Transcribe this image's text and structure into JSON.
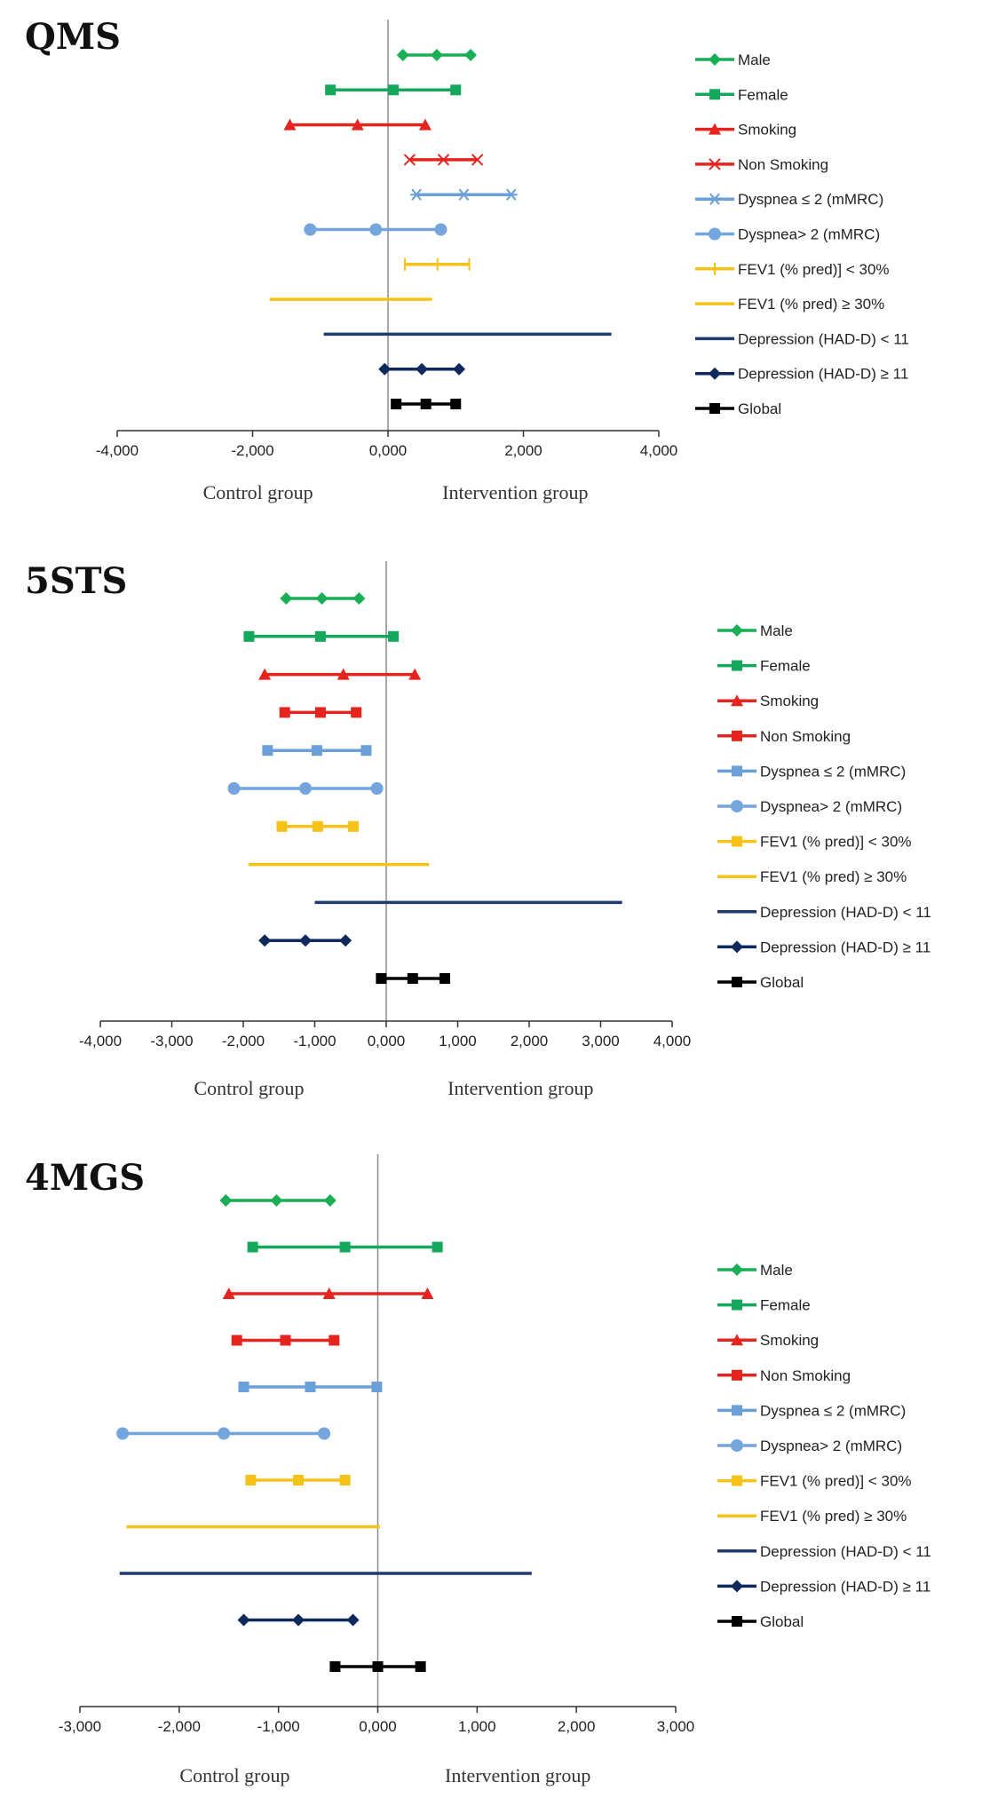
{
  "colors": {
    "Male": "#1aae55",
    "Female": "#14a85c",
    "Smoking": "#e52420",
    "Non Smoking": "#e52420",
    "Dyspnea ≤ 2 (mMRC)": "#6a9fd8",
    "Dyspnea> 2 (mMRC)": "#74a5dc",
    "FEV1 (% pred)] < 30%": "#f5c218",
    "FEV1 (% pred) ≥ 30%": "#f5c218",
    "Depression (HAD-D) < 11": "#1f3a6e",
    "Depression (HAD-D) ≥ 11": "#0e2a5c",
    "Global": "#000000"
  },
  "chart_data": [
    {
      "type": "forest",
      "title": "QMS",
      "xlim": [
        -4,
        4
      ],
      "ticks": [
        -4,
        -2,
        0,
        2,
        4
      ],
      "tick_labels": [
        "-4,000",
        "-2,000",
        "0,000",
        "2,000",
        "4,000"
      ],
      "left_group": "Control group",
      "right_group": "Intervention group",
      "series": [
        {
          "name": "Male",
          "marker": "diamond",
          "low": 0.22,
          "mid": 0.72,
          "high": 1.22
        },
        {
          "name": "Female",
          "marker": "square",
          "low": -0.85,
          "mid": 0.08,
          "high": 1.0
        },
        {
          "name": "Smoking",
          "marker": "triangle",
          "low": -1.45,
          "mid": -0.45,
          "high": 0.55
        },
        {
          "name": "Non Smoking",
          "marker": "x",
          "low": 0.32,
          "mid": 0.82,
          "high": 1.32
        },
        {
          "name": "Dyspnea ≤ 2 (mMRC)",
          "marker": "star",
          "low": 0.42,
          "mid": 1.12,
          "high": 1.82
        },
        {
          "name": "Dyspnea> 2 (mMRC)",
          "marker": "circle",
          "low": -1.15,
          "mid": -0.18,
          "high": 0.78
        },
        {
          "name": "FEV1 (% pred)] < 30%",
          "marker": "plus",
          "low": 0.25,
          "mid": 0.73,
          "high": 1.2
        },
        {
          "name": "FEV1 (% pred) ≥ 30%",
          "marker": "none",
          "low": -1.75,
          "high": 0.65
        },
        {
          "name": "Depression (HAD-D) < 11",
          "marker": "none",
          "low": -0.95,
          "high": 3.3
        },
        {
          "name": "Depression (HAD-D) ≥ 11",
          "marker": "diamond",
          "low": -0.05,
          "mid": 0.5,
          "high": 1.05
        },
        {
          "name": "Global",
          "marker": "square",
          "low": 0.12,
          "mid": 0.56,
          "high": 1.0
        }
      ]
    },
    {
      "type": "forest",
      "title": "5STS",
      "xlim": [
        -4,
        4
      ],
      "ticks": [
        -4,
        -3,
        -2,
        -1,
        0,
        1,
        2,
        3,
        4
      ],
      "tick_labels": [
        "-4,000",
        "-3,000",
        "-2,000",
        "-1,000",
        "0,000",
        "1,000",
        "2,000",
        "3,000",
        "4,000"
      ],
      "left_group": "Control group",
      "right_group": "Intervention group",
      "series": [
        {
          "name": "Male",
          "marker": "diamond",
          "low": -1.4,
          "mid": -0.9,
          "high": -0.38
        },
        {
          "name": "Female",
          "marker": "square",
          "low": -1.92,
          "mid": -0.92,
          "high": 0.1
        },
        {
          "name": "Smoking",
          "marker": "triangle",
          "low": -1.7,
          "mid": -0.6,
          "high": 0.4
        },
        {
          "name": "Non Smoking",
          "marker": "square",
          "low": -1.42,
          "mid": -0.92,
          "high": -0.42
        },
        {
          "name": "Dyspnea ≤ 2 (mMRC)",
          "marker": "square",
          "low": -1.66,
          "mid": -0.97,
          "high": -0.28
        },
        {
          "name": "Dyspnea> 2 (mMRC)",
          "marker": "circle",
          "low": -2.13,
          "mid": -1.13,
          "high": -0.13
        },
        {
          "name": "FEV1 (% pred)] < 30%",
          "marker": "square",
          "low": -1.46,
          "mid": -0.96,
          "high": -0.46
        },
        {
          "name": "FEV1 (% pred) ≥ 30%",
          "marker": "none",
          "low": -1.93,
          "high": 0.6
        },
        {
          "name": "Depression (HAD-D) < 11",
          "marker": "none",
          "low": -1.0,
          "high": 3.3
        },
        {
          "name": "Depression (HAD-D) ≥ 11",
          "marker": "diamond",
          "low": -1.7,
          "mid": -1.13,
          "high": -0.57
        },
        {
          "name": "Global",
          "marker": "square",
          "low": -0.07,
          "mid": 0.37,
          "high": 0.82
        }
      ]
    },
    {
      "type": "forest",
      "title": "4MGS",
      "xlim": [
        -3,
        3
      ],
      "ticks": [
        -3,
        -2,
        -1,
        0,
        1,
        2,
        3
      ],
      "tick_labels": [
        "-3,000",
        "-2,000",
        "-1,000",
        "0,000",
        "1,000",
        "2,000",
        "3,000"
      ],
      "left_group": "Control group",
      "right_group": "Intervention group",
      "series": [
        {
          "name": "Male",
          "marker": "diamond",
          "low": -1.53,
          "mid": -1.02,
          "high": -0.48
        },
        {
          "name": "Female",
          "marker": "square",
          "low": -1.26,
          "mid": -0.33,
          "high": 0.6
        },
        {
          "name": "Smoking",
          "marker": "triangle",
          "low": -1.5,
          "mid": -0.49,
          "high": 0.5
        },
        {
          "name": "Non Smoking",
          "marker": "square",
          "low": -1.42,
          "mid": -0.93,
          "high": -0.44
        },
        {
          "name": "Dyspnea ≤ 2 (mMRC)",
          "marker": "square",
          "low": -1.35,
          "mid": -0.68,
          "high": -0.01
        },
        {
          "name": "Dyspnea> 2 (mMRC)",
          "marker": "circle",
          "low": -2.57,
          "mid": -1.55,
          "high": -0.54
        },
        {
          "name": "FEV1 (% pred)] < 30%",
          "marker": "square",
          "low": -1.28,
          "mid": -0.8,
          "high": -0.33
        },
        {
          "name": "FEV1 (% pred) ≥ 30%",
          "marker": "none",
          "low": -2.53,
          "high": 0.02
        },
        {
          "name": "Depression (HAD-D) < 11",
          "marker": "none",
          "low": -2.6,
          "high": 1.55
        },
        {
          "name": "Depression (HAD-D) ≥ 11",
          "marker": "diamond",
          "low": -1.35,
          "mid": -0.8,
          "high": -0.25
        },
        {
          "name": "Global",
          "marker": "square",
          "low": -0.43,
          "mid": 0.0,
          "high": 0.43
        }
      ]
    }
  ]
}
